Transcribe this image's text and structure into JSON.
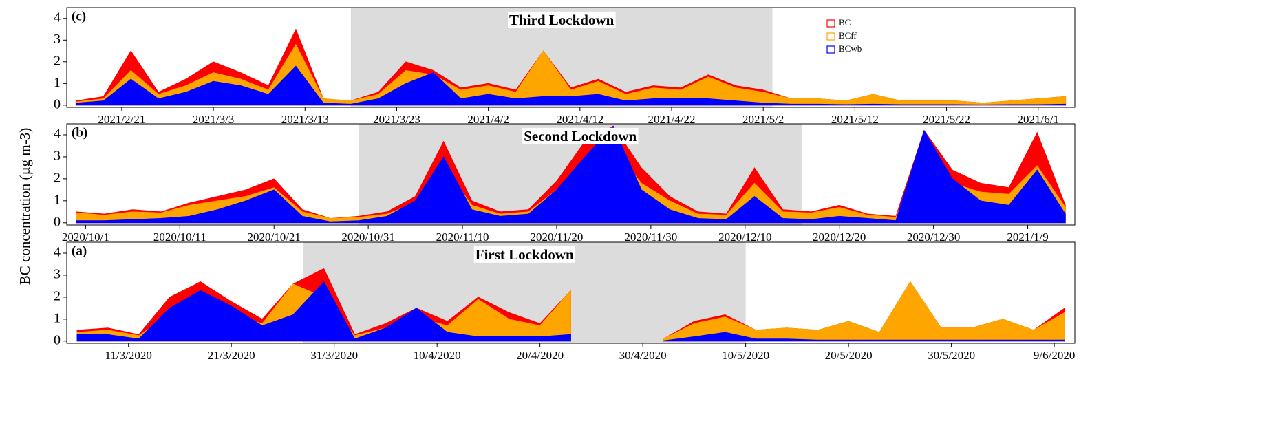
{
  "ylabel": "BC concentration (µg m-3)",
  "chart_data": [
    {
      "type": "area",
      "panel_label": "(c)",
      "annotation": "Third Lockdown",
      "shade": [
        "2021/3/18",
        "2021/5/3"
      ],
      "legend": true,
      "x": [
        "2021/2/16",
        "2021/2/19",
        "2021/2/22",
        "2021/2/25",
        "2021/2/28",
        "2021/3/3",
        "2021/3/6",
        "2021/3/9",
        "2021/3/12",
        "2021/3/15",
        "2021/3/18",
        "2021/3/21",
        "2021/3/24",
        "2021/3/27",
        "2021/3/30",
        "2021/4/2",
        "2021/4/5",
        "2021/4/8",
        "2021/4/11",
        "2021/4/14",
        "2021/4/17",
        "2021/4/20",
        "2021/4/23",
        "2021/4/26",
        "2021/4/29",
        "2021/5/2",
        "2021/5/5",
        "2021/5/8",
        "2021/5/11",
        "2021/5/14",
        "2021/5/17",
        "2021/5/20",
        "2021/5/23",
        "2021/5/26",
        "2021/5/29",
        "2021/6/1",
        "2021/6/4"
      ],
      "series": [
        {
          "name": "BC",
          "color": "#ff0000",
          "values": [
            0.2,
            0.4,
            2.5,
            0.6,
            1.2,
            2.0,
            1.5,
            0.9,
            3.5,
            0.3,
            0.2,
            0.6,
            2.0,
            1.6,
            0.8,
            1.0,
            0.7,
            2.5,
            0.8,
            1.2,
            0.6,
            0.9,
            0.8,
            1.4,
            0.9,
            0.7,
            0.3,
            0.3,
            0.2,
            0.5,
            0.2,
            0.2,
            0.2,
            0.1,
            0.2,
            0.3,
            0.4
          ]
        },
        {
          "name": "BCff",
          "color": "#ffa500",
          "values": [
            0.15,
            0.3,
            1.6,
            0.5,
            0.9,
            1.5,
            1.2,
            0.7,
            2.8,
            0.3,
            0.2,
            0.5,
            1.6,
            1.4,
            0.7,
            0.9,
            0.6,
            2.5,
            0.7,
            1.1,
            0.5,
            0.8,
            0.7,
            1.3,
            0.8,
            0.6,
            0.3,
            0.3,
            0.2,
            0.5,
            0.2,
            0.2,
            0.2,
            0.1,
            0.2,
            0.3,
            0.4
          ]
        },
        {
          "name": "BCwb",
          "color": "#0000ff",
          "values": [
            0.1,
            0.2,
            1.2,
            0.3,
            0.6,
            1.1,
            0.9,
            0.5,
            1.8,
            0.1,
            0.05,
            0.3,
            1.0,
            1.5,
            0.3,
            0.5,
            0.3,
            0.4,
            0.4,
            0.5,
            0.2,
            0.3,
            0.3,
            0.3,
            0.2,
            0.1,
            0.05,
            0.05,
            0.03,
            0.05,
            0.03,
            0.03,
            0.03,
            0.02,
            0.03,
            0.03,
            0.05
          ]
        }
      ],
      "xlim": [
        "2021/2/15",
        "2021/6/5"
      ],
      "xticks": [
        "2021/2/21",
        "2021/3/3",
        "2021/3/13",
        "2021/3/23",
        "2021/4/2",
        "2021/4/12",
        "2021/4/22",
        "2021/5/2",
        "2021/5/12",
        "2021/5/22",
        "2021/6/1"
      ],
      "ylim": [
        -0.1,
        4.5
      ],
      "yticks": [
        0,
        1,
        2,
        3,
        4
      ]
    },
    {
      "type": "area",
      "panel_label": "(b)",
      "annotation": "Second Lockdown",
      "shade": [
        "2020/10/30",
        "2020/12/16"
      ],
      "x": [
        "2020/9/30",
        "2020/10/3",
        "2020/10/6",
        "2020/10/9",
        "2020/10/12",
        "2020/10/15",
        "2020/10/18",
        "2020/10/21",
        "2020/10/24",
        "2020/10/27",
        "2020/10/30",
        "2020/11/2",
        "2020/11/5",
        "2020/11/8",
        "2020/11/11",
        "2020/11/14",
        "2020/11/17",
        "2020/11/20",
        "2020/11/23",
        "2020/11/26",
        "2020/11/29",
        "2020/12/2",
        "2020/12/5",
        "2020/12/8",
        "2020/12/11",
        "2020/12/14",
        "2020/12/17",
        "2020/12/20",
        "2020/12/23",
        "2020/12/26",
        "2020/12/29",
        "2021/1/1",
        "2021/1/4",
        "2021/1/7",
        "2021/1/10",
        "2021/1/13"
      ],
      "series": [
        {
          "color": "#ff0000",
          "values": [
            0.5,
            0.4,
            0.6,
            0.5,
            0.9,
            1.2,
            1.5,
            2.0,
            0.6,
            0.2,
            0.3,
            0.5,
            1.2,
            3.7,
            1.0,
            0.5,
            0.6,
            1.9,
            3.7,
            4.4,
            2.5,
            1.2,
            0.5,
            0.4,
            2.5,
            0.6,
            0.5,
            0.8,
            0.4,
            0.3,
            4.2,
            2.4,
            1.8,
            1.6,
            4.1,
            0.8
          ]
        },
        {
          "color": "#ffa500",
          "values": [
            0.45,
            0.35,
            0.5,
            0.45,
            0.8,
            1.0,
            1.2,
            1.6,
            0.5,
            0.2,
            0.25,
            0.4,
            0.9,
            2.6,
            0.8,
            0.4,
            0.5,
            1.5,
            2.8,
            3.4,
            1.8,
            1.0,
            0.4,
            0.35,
            1.8,
            0.5,
            0.45,
            0.7,
            0.35,
            0.25,
            3.3,
            1.8,
            1.4,
            1.3,
            2.6,
            0.7
          ]
        },
        {
          "color": "#0000ff",
          "values": [
            0.1,
            0.1,
            0.15,
            0.2,
            0.3,
            0.6,
            1.0,
            1.5,
            0.3,
            0.05,
            0.1,
            0.3,
            1.0,
            3.0,
            0.6,
            0.3,
            0.4,
            1.5,
            3.0,
            4.4,
            1.5,
            0.6,
            0.2,
            0.15,
            1.2,
            0.2,
            0.15,
            0.3,
            0.2,
            0.1,
            4.2,
            2.0,
            1.0,
            0.8,
            2.4,
            0.4
          ]
        }
      ],
      "xlim": [
        "2020/9/29",
        "2021/1/14"
      ],
      "xticks": [
        "2020/10/1",
        "2020/10/11",
        "2020/10/21",
        "2020/10/31",
        "2020/11/10",
        "2020/11/20",
        "2020/11/30",
        "2020/12/10",
        "2020/12/20",
        "2020/12/30",
        "2021/1/9"
      ],
      "ylim": [
        -0.1,
        4.5
      ],
      "yticks": [
        0,
        1,
        2,
        3,
        4
      ]
    },
    {
      "type": "area",
      "panel_label": "(a)",
      "annotation": "First Lockdown",
      "shade": [
        "28/3/2020",
        "10/5/2020"
      ],
      "x": [
        "6/3/2020",
        "9/3/2020",
        "12/3/2020",
        "15/3/2020",
        "18/3/2020",
        "21/3/2020",
        "24/3/2020",
        "27/3/2020",
        "30/3/2020",
        "2/4/2020",
        "5/4/2020",
        "8/4/2020",
        "11/4/2020",
        "14/4/2020",
        "17/4/2020",
        "20/4/2020",
        "23/4/2020",
        "26/4/2020",
        "29/4/2020",
        "2/5/2020",
        "5/5/2020",
        "8/5/2020",
        "11/5/2020",
        "14/5/2020",
        "17/5/2020",
        "20/5/2020",
        "23/5/2020",
        "26/5/2020",
        "29/5/2020",
        "1/6/2020",
        "4/6/2020",
        "7/6/2020",
        "10/6/2020"
      ],
      "series": [
        {
          "color": "#ff0000",
          "values": [
            0.5,
            0.6,
            0.3,
            2.0,
            2.7,
            1.8,
            1.0,
            2.6,
            3.3,
            0.3,
            0.8,
            1.5,
            0.9,
            2.0,
            1.3,
            0.8,
            2.3,
            null,
            null,
            0.1,
            0.9,
            1.2,
            0.5,
            0.6,
            0.5,
            0.9,
            0.4,
            2.7,
            0.6,
            0.6,
            1.0,
            0.5,
            1.5
          ]
        },
        {
          "color": "#ffa500",
          "values": [
            0.4,
            0.5,
            0.25,
            1.2,
            2.0,
            1.2,
            0.8,
            2.6,
            2.0,
            0.25,
            0.6,
            1.1,
            0.7,
            1.9,
            1.0,
            0.7,
            2.3,
            null,
            null,
            0.1,
            0.8,
            1.1,
            0.5,
            0.6,
            0.5,
            0.9,
            0.4,
            2.7,
            0.6,
            0.6,
            1.0,
            0.5,
            1.3
          ]
        },
        {
          "color": "#0000ff",
          "values": [
            0.3,
            0.3,
            0.1,
            1.5,
            2.3,
            1.6,
            0.7,
            1.2,
            2.7,
            0.1,
            0.6,
            1.5,
            0.4,
            0.2,
            0.2,
            0.2,
            0.3,
            null,
            null,
            0.02,
            0.2,
            0.4,
            0.1,
            0.1,
            0.05,
            0.05,
            0.05,
            0.05,
            0.05,
            0.05,
            0.05,
            0.05,
            0.05
          ]
        }
      ],
      "xlim": [
        "5/3/2020",
        "11/6/2020"
      ],
      "xticks": [
        "11/3/2020",
        "21/3/2020",
        "31/3/2020",
        "10/4/2020",
        "20/4/2020",
        "30/4/2020",
        "10/5/2020",
        "20/5/2020",
        "30/5/2020",
        "9/6/2020"
      ],
      "ylim": [
        -0.1,
        4.5
      ],
      "yticks": [
        0,
        1,
        2,
        3,
        4
      ]
    }
  ]
}
